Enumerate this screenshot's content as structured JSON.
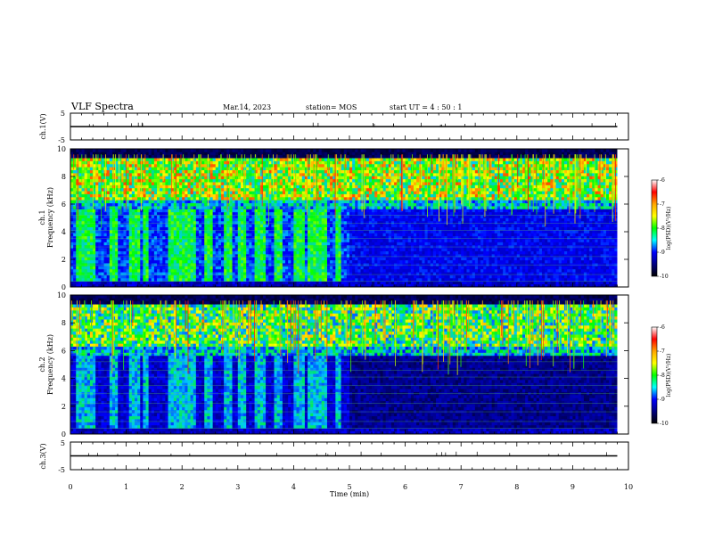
{
  "header": {
    "title": "VLF Spectra",
    "date": "Mar.14, 2023",
    "station": "station= MOS",
    "start": "start  UT =   4 : 50 : 1"
  },
  "colorbar": {
    "label": "log(PSD)(V²/Hz)",
    "ticks": [
      "-6",
      "-7",
      "-8",
      "-9",
      "-10"
    ],
    "colors": [
      "#ffffff",
      "#ff0000",
      "#ffa500",
      "#ffff00",
      "#00ff00",
      "#00ffff",
      "#0000ff",
      "#000080",
      "#000000"
    ]
  },
  "chart_data": [
    {
      "type": "line",
      "name": "ch1-voltage",
      "ylabel": "ch.1(V)",
      "ylim": [
        -5,
        5
      ],
      "yticks": [
        "5",
        "-5"
      ],
      "xlim": [
        0,
        10
      ],
      "series": [
        {
          "x": [
            0,
            9.8
          ],
          "y": [
            0,
            0
          ]
        }
      ]
    },
    {
      "type": "heatmap",
      "name": "ch1-spectrogram",
      "ylabel": "ch.1\nFrequency (kHz)",
      "ylabel_line1": "ch.1",
      "ylabel_line2": "Frequency (kHz)",
      "ylim": [
        0,
        10
      ],
      "yticks": [
        "0",
        "2",
        "4",
        "6",
        "8",
        "10"
      ],
      "xlim": [
        0,
        10
      ],
      "zlim": [
        -10,
        -6
      ],
      "bursts_min": [
        [
          0.1,
          0.4
        ],
        [
          0.7,
          0.85
        ],
        [
          1.05,
          1.2
        ],
        [
          1.3,
          1.4
        ],
        [
          1.75,
          2.2
        ],
        [
          2.4,
          2.55
        ],
        [
          2.75,
          2.85
        ],
        [
          3.0,
          3.15
        ],
        [
          3.3,
          3.5
        ],
        [
          3.65,
          3.75
        ],
        [
          4.0,
          4.15
        ],
        [
          4.25,
          4.6
        ],
        [
          4.75,
          4.85
        ]
      ]
    },
    {
      "type": "heatmap",
      "name": "ch2-spectrogram",
      "ylabel": "ch.2\nFrequency (kHz)",
      "ylabel_line1": "ch.2",
      "ylabel_line2": "Frequency (kHz)",
      "ylim": [
        0,
        10
      ],
      "yticks": [
        "0",
        "2",
        "4",
        "6",
        "8",
        "10"
      ],
      "xlim": [
        0,
        10
      ],
      "zlim": [
        -10,
        -6
      ],
      "bursts_min": [
        [
          0.1,
          0.4
        ],
        [
          0.7,
          0.85
        ],
        [
          1.05,
          1.2
        ],
        [
          1.3,
          1.4
        ],
        [
          1.75,
          2.2
        ],
        [
          2.4,
          2.55
        ],
        [
          2.75,
          2.85
        ],
        [
          3.0,
          3.15
        ],
        [
          3.3,
          3.5
        ],
        [
          3.65,
          3.75
        ],
        [
          4.0,
          4.15
        ],
        [
          4.25,
          4.6
        ],
        [
          4.75,
          4.85
        ]
      ]
    },
    {
      "type": "line",
      "name": "ch3-voltage",
      "ylabel": "ch.3(V)",
      "ylim": [
        -5,
        5
      ],
      "yticks": [
        "5",
        "-5"
      ],
      "xlim": [
        0,
        10
      ],
      "series": [
        {
          "x": [
            0,
            9.8
          ],
          "y": [
            0,
            0
          ]
        }
      ]
    }
  ],
  "xaxis": {
    "label": "Time  (min)",
    "ticks": [
      "0",
      "1",
      "2",
      "3",
      "4",
      "5",
      "6",
      "7",
      "8",
      "9",
      "10"
    ]
  }
}
